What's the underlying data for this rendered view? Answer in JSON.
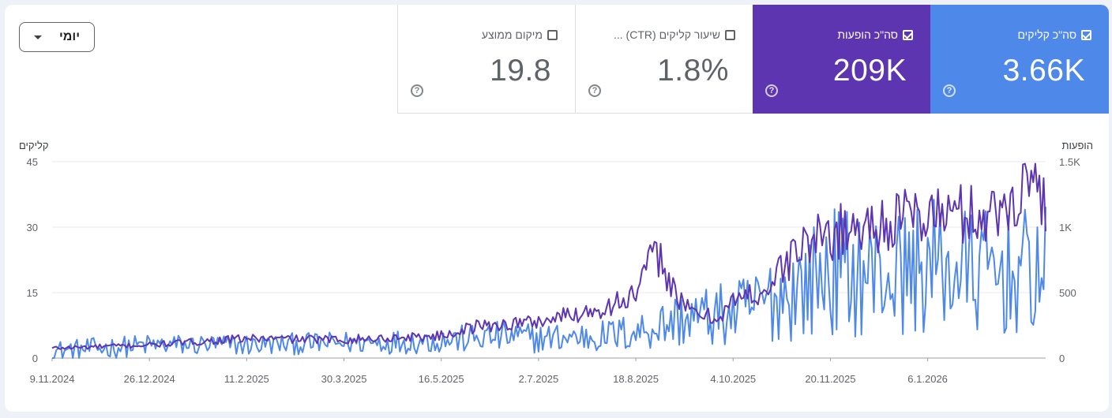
{
  "dropdown": {
    "label": "יומי",
    "icon": "caret-down-icon"
  },
  "metrics": {
    "clicks": {
      "label": "סה\"כ קליקים",
      "value": "3.66K",
      "checked": true,
      "color": "#4e89ea"
    },
    "impressions": {
      "label": "סה\"כ הופעות",
      "value": "209K",
      "checked": true,
      "color": "#5e35b1"
    },
    "ctr": {
      "label": "שיעור קליקים (CTR) ...",
      "value": "1.8%",
      "checked": false
    },
    "position": {
      "label": "מיקום ממוצע",
      "value": "19.8",
      "checked": false
    },
    "help_icon": "?"
  },
  "chart_data": {
    "type": "line",
    "left_axis": {
      "title": "קליקים",
      "ticks": [
        "45",
        "30",
        "15",
        "0"
      ],
      "range": [
        0,
        45
      ]
    },
    "right_axis": {
      "title": "הופעות",
      "ticks": [
        "1.5K",
        "1K",
        "500",
        "0"
      ],
      "range": [
        0,
        1500
      ]
    },
    "x_ticks": [
      "9.11.2024",
      "26.12.2024",
      "11.2.2025",
      "30.3.2025",
      "16.5.2025",
      "2.7.2025",
      "18.8.2025",
      "4.10.2025",
      "20.11.2025",
      "6.1.2026"
    ],
    "x_range": [
      "2024-11-09",
      "2026-03-04"
    ],
    "grid": true,
    "series": [
      {
        "name": "סה\"כ קליקים",
        "axis": "left",
        "color": "#4e89ea",
        "anchors": [
          [
            "2024-11-09",
            1.5
          ],
          [
            "2024-12-26",
            3
          ],
          [
            "2025-02-11",
            3
          ],
          [
            "2025-03-30",
            3.5
          ],
          [
            "2025-05-16",
            4
          ],
          [
            "2025-06-15",
            5
          ],
          [
            "2025-07-02",
            4.5
          ],
          [
            "2025-08-01",
            5
          ],
          [
            "2025-08-18",
            6
          ],
          [
            "2025-09-10",
            9
          ],
          [
            "2025-10-04",
            10
          ],
          [
            "2025-10-20",
            13
          ],
          [
            "2025-11-05",
            16
          ],
          [
            "2025-11-20",
            20
          ],
          [
            "2025-12-20",
            19
          ],
          [
            "2026-01-06",
            21
          ],
          [
            "2026-02-10",
            19
          ],
          [
            "2026-03-04",
            20
          ]
        ]
      },
      {
        "name": "סה\"כ הופעות",
        "axis": "right",
        "color": "#5e35b1",
        "anchors": [
          [
            "2024-11-09",
            75
          ],
          [
            "2024-12-26",
            100
          ],
          [
            "2025-02-11",
            150
          ],
          [
            "2025-03-30",
            140
          ],
          [
            "2025-05-16",
            170
          ],
          [
            "2025-06-01",
            240
          ],
          [
            "2025-07-02",
            280
          ],
          [
            "2025-08-01",
            380
          ],
          [
            "2025-08-18",
            480
          ],
          [
            "2025-08-28",
            820
          ],
          [
            "2025-09-10",
            380
          ],
          [
            "2025-09-25",
            300
          ],
          [
            "2025-10-04",
            430
          ],
          [
            "2025-10-20",
            520
          ],
          [
            "2025-11-05",
            850
          ],
          [
            "2025-11-20",
            950
          ],
          [
            "2025-12-20",
            1050
          ],
          [
            "2026-01-06",
            1100
          ],
          [
            "2026-02-10",
            1100
          ],
          [
            "2026-02-26",
            1420
          ],
          [
            "2026-03-04",
            1200
          ]
        ]
      }
    ]
  }
}
